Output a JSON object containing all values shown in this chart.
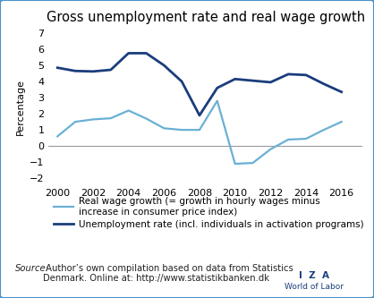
{
  "title": "Gross unemployment rate and real wage growth",
  "ylabel": "Percentage",
  "xlim": [
    1999.5,
    2017.2
  ],
  "ylim": [
    -2.4,
    7.2
  ],
  "yticks": [
    -2,
    -1,
    0,
    1,
    2,
    3,
    4,
    5,
    6,
    7
  ],
  "xticks": [
    2000,
    2002,
    2004,
    2006,
    2008,
    2010,
    2012,
    2014,
    2016
  ],
  "unemployment_years": [
    2000,
    2001,
    2002,
    2003,
    2004,
    2005,
    2006,
    2007,
    2008,
    2009,
    2010,
    2011,
    2012,
    2013,
    2014,
    2015,
    2016
  ],
  "unemployment_values": [
    4.85,
    4.65,
    4.62,
    4.72,
    5.75,
    5.75,
    5.0,
    4.0,
    1.9,
    3.6,
    4.15,
    4.05,
    3.95,
    4.45,
    4.4,
    3.85,
    3.35
  ],
  "realwage_years": [
    2000,
    2001,
    2002,
    2003,
    2004,
    2005,
    2006,
    2007,
    2008,
    2009,
    2010,
    2011,
    2012,
    2013,
    2014,
    2015,
    2016
  ],
  "realwage_values": [
    0.6,
    1.5,
    1.65,
    1.72,
    2.2,
    1.7,
    1.1,
    1.0,
    1.0,
    2.8,
    -1.1,
    -1.05,
    -0.2,
    0.4,
    0.45,
    1.0,
    1.5
  ],
  "unemployment_color": "#1a3d7c",
  "realwage_color": "#6ab0d4",
  "unemployment_linewidth": 2.0,
  "realwage_linewidth": 1.6,
  "legend_label_realwage": "Real wage growth (= growth in hourly wages minus\nincrease in consumer price index)",
  "legend_label_unemployment": "Unemployment rate (incl. individuals in activation programs)",
  "source_italic": "Source:",
  "source_rest": " Author’s own compilation based on data from Statistics\nDenmark. Online at: http://www.statistikbanken.dk",
  "iza_line1": "I  Z  A",
  "iza_line2": "World of Labor",
  "background_color": "#ffffff",
  "border_color": "#4a90c8",
  "title_fontsize": 10.5,
  "axis_label_fontsize": 8,
  "tick_fontsize": 8,
  "legend_fontsize": 7.5,
  "source_fontsize": 7.2
}
